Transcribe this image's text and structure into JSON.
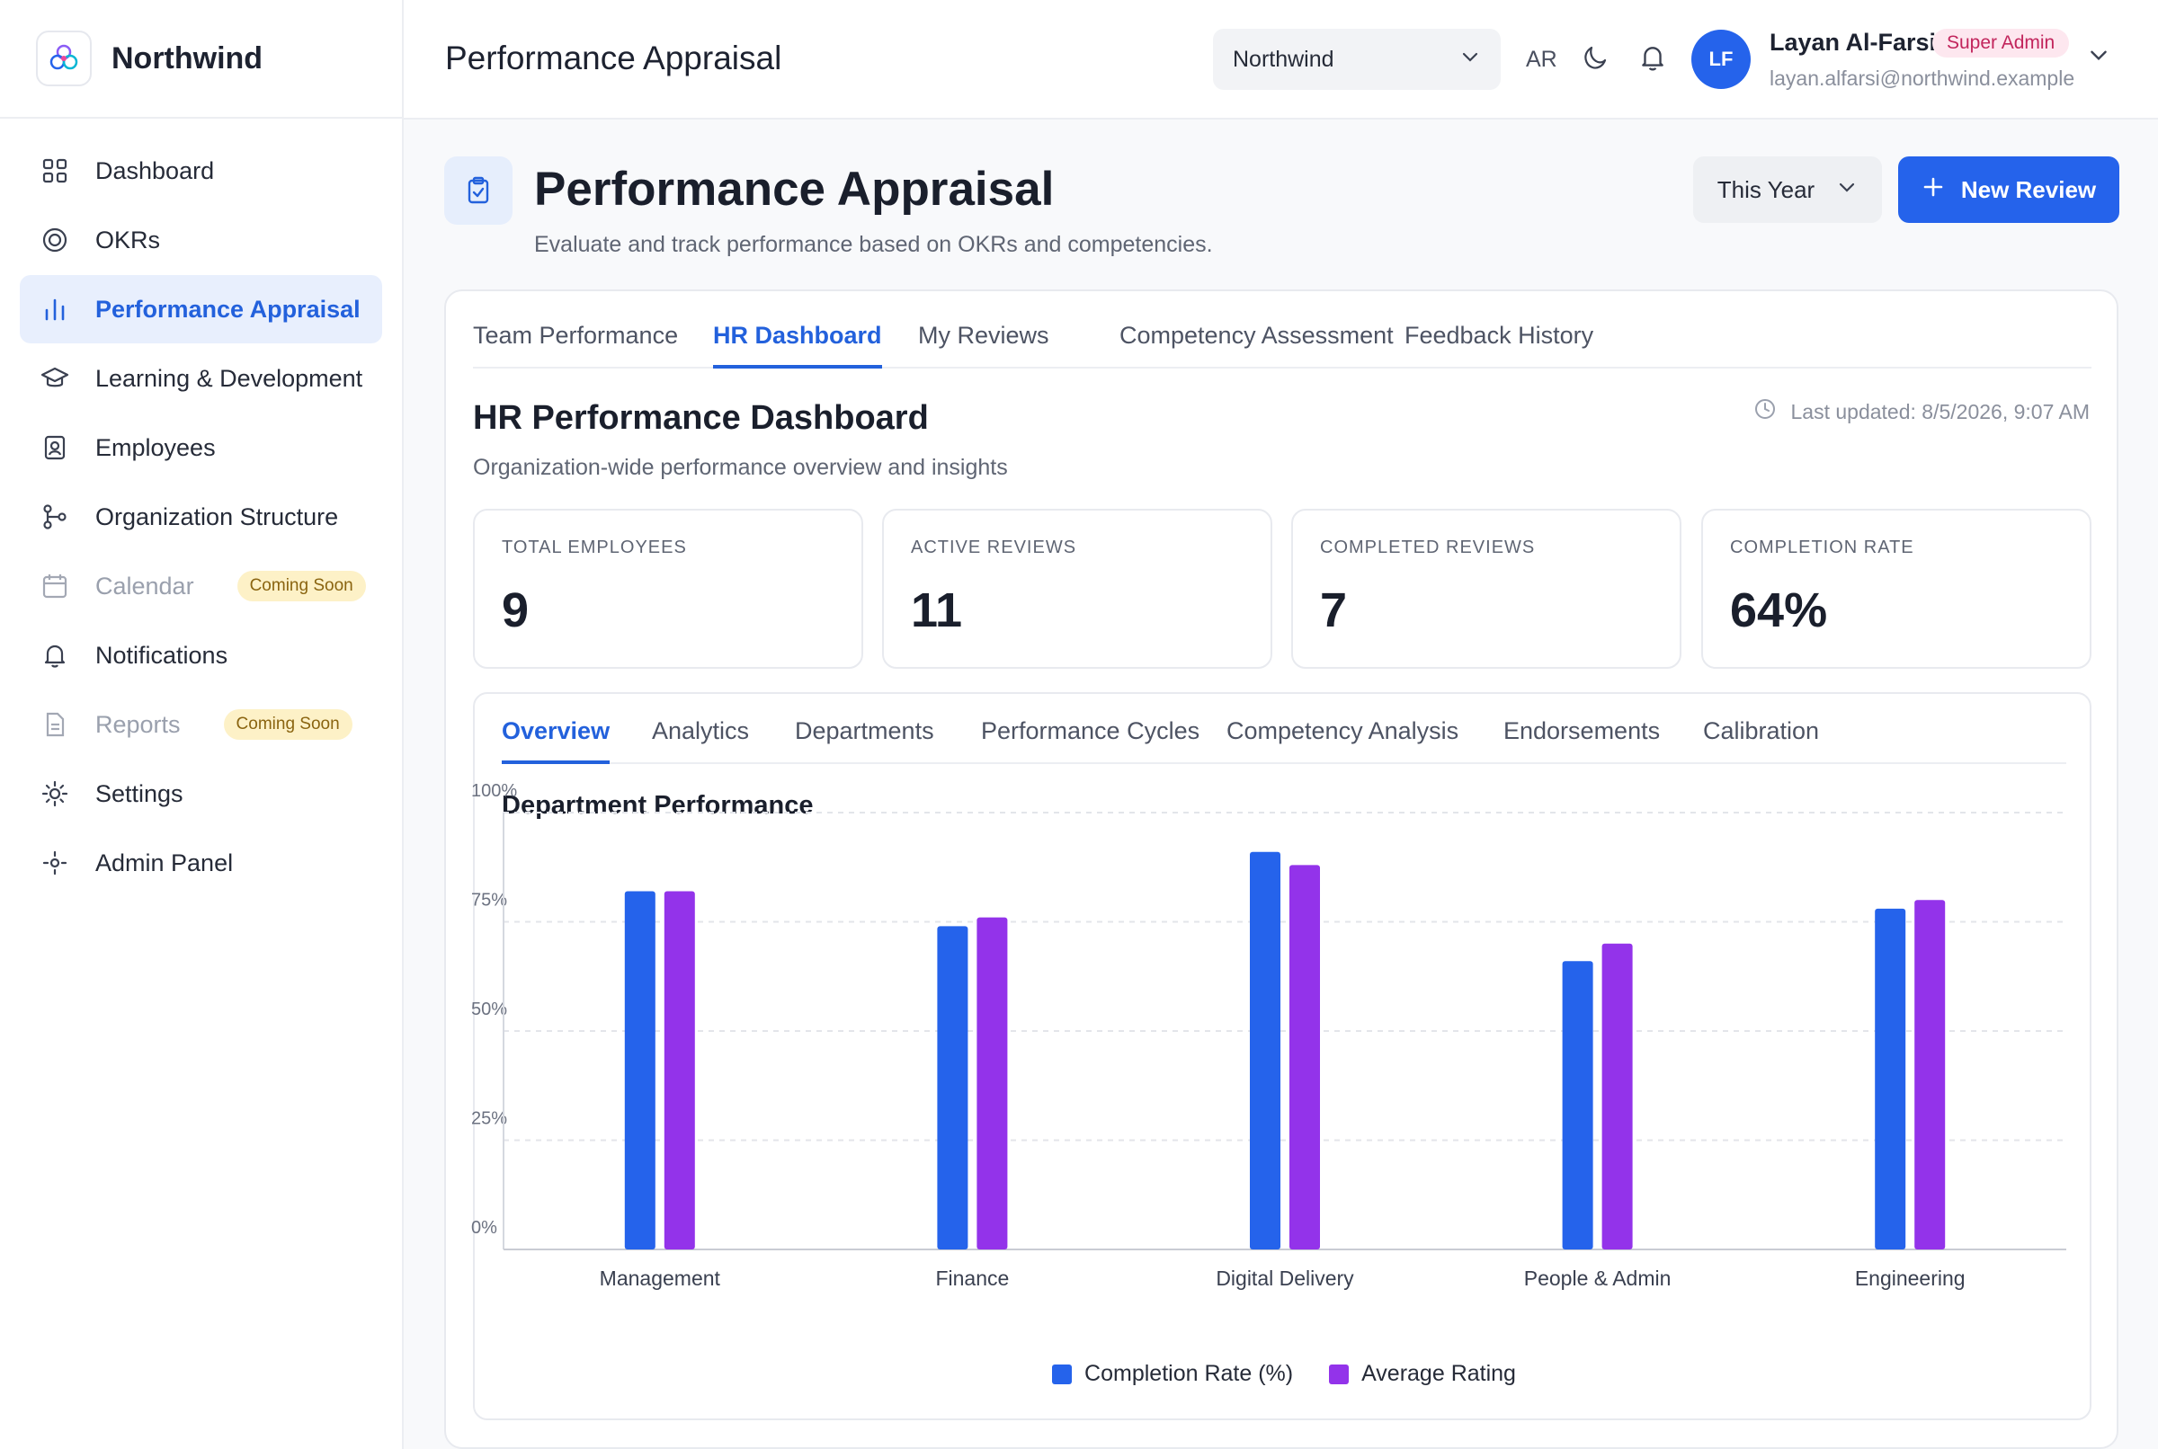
{
  "brand": {
    "name": "Northwind"
  },
  "sidebar": {
    "items": [
      {
        "label": "Dashboard",
        "icon": "dashboard-grid-icon"
      },
      {
        "label": "OKRs",
        "icon": "target-icon"
      },
      {
        "label": "Performance Appraisal",
        "icon": "bar-chart-icon",
        "active": true
      },
      {
        "label": "Learning & Development",
        "icon": "graduation-cap-icon"
      },
      {
        "label": "Employees",
        "icon": "id-badge-icon"
      },
      {
        "label": "Organization Structure",
        "icon": "org-chart-icon"
      },
      {
        "label": "Calendar",
        "icon": "calendar-icon",
        "badge": "Coming Soon",
        "disabled": true
      },
      {
        "label": "Notifications",
        "icon": "bell-icon"
      },
      {
        "label": "Reports",
        "icon": "document-icon",
        "badge": "Coming Soon",
        "disabled": true
      },
      {
        "label": "Settings",
        "icon": "gear-icon"
      },
      {
        "label": "Admin Panel",
        "icon": "admin-icon"
      }
    ]
  },
  "topbar": {
    "title": "Performance Appraisal",
    "org_select": "Northwind",
    "language": "AR",
    "user": {
      "initials": "LF",
      "name": "Layan Al-Farsi",
      "role": "Super Admin",
      "email": "layan.alfarsi@northwind.example"
    }
  },
  "page": {
    "title": "Performance Appraisal",
    "subtitle": "Evaluate and track performance based on OKRs and competencies.",
    "period_select": "This Year",
    "new_button": "New Review"
  },
  "tabs": [
    "Team Performance",
    "HR Dashboard",
    "My Reviews",
    "Competency Assessment",
    "Feedback History"
  ],
  "active_tab": "HR Dashboard",
  "dashboard": {
    "title": "HR Performance Dashboard",
    "subtitle": "Organization-wide performance overview and insights",
    "last_updated": "Last updated: 8/5/2026, 9:07 AM",
    "stats": [
      {
        "label": "TOTAL EMPLOYEES",
        "value": "9"
      },
      {
        "label": "ACTIVE REVIEWS",
        "value": "11"
      },
      {
        "label": "COMPLETED REVIEWS",
        "value": "7"
      },
      {
        "label": "COMPLETION RATE",
        "value": "64%"
      }
    ],
    "subtabs": [
      "Overview",
      "Analytics",
      "Departments",
      "Performance Cycles",
      "Competency Analysis",
      "Endorsements",
      "Calibration"
    ],
    "active_subtab": "Overview",
    "chart_title": "Department Performance"
  },
  "colors": {
    "accent": "#2563eb",
    "series_completion": "#2563eb",
    "series_rating": "#9333ea",
    "badge_soon_bg": "#fdf1c7",
    "badge_admin": "#c2255c"
  },
  "chart_data": {
    "type": "bar",
    "title": "Department Performance",
    "categories": [
      "Management",
      "Finance",
      "Digital Delivery",
      "People & Admin",
      "Engineering"
    ],
    "series": [
      {
        "name": "Completion Rate (%)",
        "color": "#2563eb",
        "values": [
          82,
          74,
          91,
          66,
          78
        ]
      },
      {
        "name": "Average Rating",
        "color": "#9333ea",
        "values": [
          82,
          76,
          88,
          70,
          80
        ]
      }
    ],
    "y_ticks": [
      "0%",
      "25%",
      "50%",
      "75%",
      "100%"
    ],
    "ylim": [
      0,
      100
    ],
    "grid": true,
    "legend": "bottom-center"
  }
}
